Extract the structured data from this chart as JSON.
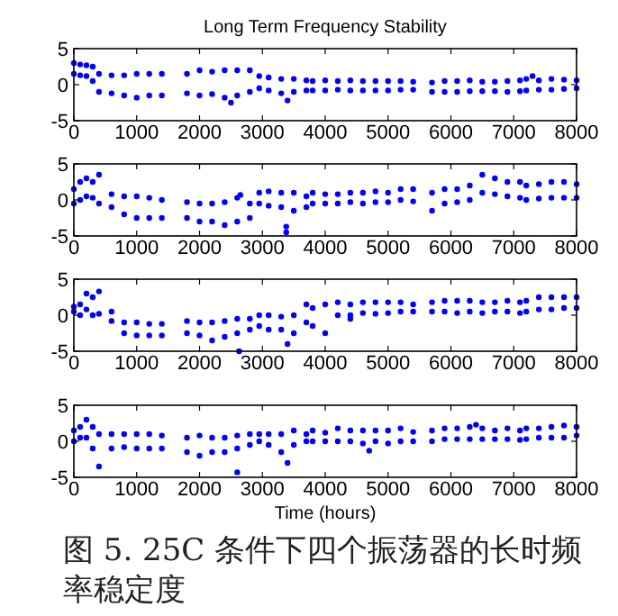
{
  "chart_data": [
    {
      "type": "scatter",
      "title": "Long Term Frequency Stability",
      "marker": "circle",
      "grid": false,
      "x": [
        0,
        100,
        200,
        300,
        400,
        600,
        800,
        1000,
        1200,
        1400,
        1800,
        2000,
        2200,
        2400,
        2600,
        2800,
        2950,
        3100,
        3300,
        3500,
        3700,
        3800,
        4000,
        4200,
        4400,
        4600,
        4800,
        5000,
        5200,
        5400,
        5700,
        5900,
        6100,
        6300,
        6500,
        6700,
        6900,
        7100,
        7200,
        7400,
        7600,
        7800,
        8000
      ],
      "series": [
        {
          "color": "#0000ff",
          "values": [
            3,
            2.8,
            2.7,
            2.5,
            1.5,
            1.3,
            1.3,
            1.5,
            1.5,
            1.5,
            1.5,
            2,
            1.8,
            2,
            2,
            2,
            1.2,
            1,
            0.8,
            0.8,
            0.6,
            0.5,
            0.6,
            0.5,
            0.6,
            0.5,
            0.5,
            0.5,
            0.5,
            0.4,
            0.3,
            0.5,
            0.5,
            0.6,
            0.4,
            0.4,
            0.5,
            0.6,
            0.8,
            0.6,
            0.8,
            0.7,
            0.6
          ]
        },
        {
          "color": "#0000ff",
          "values": [
            1.5,
            1.3,
            1.2,
            0.5,
            -1,
            -1.2,
            -1.5,
            -1.8,
            -1.5,
            -1.5,
            -1.2,
            -1.5,
            -1.3,
            -1.8,
            -1.5,
            -1,
            -0.5,
            -0.8,
            -1.2,
            -1,
            -0.8,
            -0.8,
            -0.8,
            -0.7,
            -0.8,
            -0.8,
            -0.8,
            -0.8,
            -0.7,
            -0.7,
            -1,
            -1,
            -1,
            -0.9,
            -0.9,
            -0.9,
            -1,
            -0.9,
            -0.8,
            -0.7,
            -0.7,
            -0.6,
            -0.5
          ]
        },
        {
          "color": "#0000ff",
          "x": [
            2500,
            3400,
            7300
          ],
          "values": [
            -2.5,
            -2.2,
            1.2
          ]
        }
      ],
      "xlim": [
        0,
        8000
      ],
      "xticks": [
        0,
        1000,
        2000,
        3000,
        4000,
        5000,
        6000,
        7000,
        8000
      ],
      "ylim": [
        -5,
        5
      ],
      "yticks": [
        -5,
        0,
        5
      ]
    },
    {
      "type": "scatter",
      "marker": "circle",
      "grid": false,
      "x": [
        0,
        100,
        200,
        300,
        400,
        600,
        800,
        1000,
        1200,
        1400,
        1800,
        2000,
        2200,
        2400,
        2600,
        2800,
        2950,
        3100,
        3300,
        3500,
        3700,
        3800,
        4000,
        4200,
        4400,
        4600,
        4800,
        5000,
        5200,
        5400,
        5700,
        5900,
        6100,
        6300,
        6500,
        6700,
        6900,
        7100,
        7200,
        7400,
        7600,
        7800,
        8000
      ],
      "series": [
        {
          "color": "#0000ff",
          "values": [
            1.5,
            2.5,
            3,
            2.5,
            3.5,
            0.8,
            0.5,
            0.5,
            0.3,
            0,
            -0.3,
            -0.5,
            -0.5,
            -0.3,
            0.3,
            -0.5,
            1,
            1.2,
            1,
            1,
            0.5,
            1,
            0.8,
            0.8,
            1,
            1,
            1.2,
            1,
            1.5,
            1.5,
            1,
            1.5,
            1.5,
            2,
            3.5,
            3,
            2.5,
            2.5,
            2,
            2.2,
            2.5,
            2.5,
            2.2
          ]
        },
        {
          "color": "#0000ff",
          "values": [
            -0.5,
            0,
            0.5,
            0.3,
            -0.5,
            -1,
            -2,
            -2.5,
            -2.5,
            -2.5,
            -2.5,
            -3,
            -3,
            -3.5,
            -3,
            -2.5,
            -0.5,
            -0.8,
            -1,
            -1.5,
            -1,
            -0.5,
            -0.5,
            -0.5,
            -0.3,
            -0.5,
            -0.3,
            -0.3,
            0,
            -0.2,
            -1.5,
            -0.5,
            -0.3,
            0,
            1,
            0.8,
            0.5,
            0.3,
            0,
            0.2,
            0.3,
            0.3,
            0.3
          ]
        },
        {
          "color": "#0000ff",
          "x": [
            3380,
            3380,
            2650
          ],
          "values": [
            -4.5,
            -3.7,
            0.7
          ]
        }
      ],
      "xlim": [
        0,
        8000
      ],
      "xticks": [
        0,
        1000,
        2000,
        3000,
        4000,
        5000,
        6000,
        7000,
        8000
      ],
      "ylim": [
        -5,
        5
      ],
      "yticks": [
        -5,
        0,
        5
      ]
    },
    {
      "type": "scatter",
      "marker": "circle",
      "grid": false,
      "x": [
        0,
        100,
        200,
        300,
        400,
        600,
        800,
        1000,
        1200,
        1400,
        1800,
        2000,
        2200,
        2400,
        2600,
        2800,
        2950,
        3100,
        3300,
        3500,
        3700,
        3800,
        4000,
        4200,
        4400,
        4600,
        4800,
        5000,
        5200,
        5400,
        5700,
        5900,
        6100,
        6300,
        6500,
        6700,
        6900,
        7100,
        7200,
        7400,
        7600,
        7800,
        8000
      ],
      "series": [
        {
          "color": "#0000ff",
          "values": [
            1.2,
            1.5,
            3,
            2.5,
            3.3,
            0.5,
            -1,
            -1,
            -1.2,
            -1.2,
            -0.8,
            -1,
            -1,
            -0.8,
            -0.5,
            -0.5,
            0,
            0,
            -0.2,
            0,
            1.5,
            1,
            1.5,
            1.8,
            1.5,
            1.8,
            1.8,
            1.8,
            1.8,
            1.5,
            1.8,
            2,
            2,
            2,
            1.8,
            1.8,
            2,
            1.8,
            2,
            2.5,
            2.5,
            2.5,
            2.5
          ]
        },
        {
          "color": "#0000ff",
          "values": [
            0.5,
            0,
            0.8,
            0,
            0.2,
            -0.8,
            -2.5,
            -2.8,
            -2.8,
            -2.8,
            -2.5,
            -2.8,
            -3.5,
            -3,
            -2.5,
            -2,
            -1.5,
            -2,
            -2,
            -2.5,
            -1,
            -1.5,
            -2.5,
            0,
            0,
            0.3,
            0.2,
            0.3,
            0.5,
            0.5,
            0.5,
            0.5,
            0.3,
            0.5,
            0.3,
            0.5,
            0.5,
            0.3,
            0.5,
            0.8,
            0.8,
            1,
            1
          ]
        },
        {
          "color": "#0000ff",
          "x": [
            2630,
            3400,
            4400
          ],
          "values": [
            -5,
            -4,
            -0.5
          ]
        }
      ],
      "xlim": [
        0,
        8000
      ],
      "xticks": [
        0,
        1000,
        2000,
        3000,
        4000,
        5000,
        6000,
        7000,
        8000
      ],
      "ylim": [
        -5,
        5
      ],
      "yticks": [
        -5,
        0,
        5
      ]
    },
    {
      "type": "scatter",
      "xlabel": "Time (hours)",
      "annotations": [
        "图 5. 25C 条件下四个振荡器的长时频率稳定度"
      ],
      "marker": "circle",
      "grid": false,
      "x": [
        0,
        100,
        200,
        300,
        400,
        600,
        800,
        1000,
        1200,
        1400,
        1800,
        2000,
        2200,
        2400,
        2600,
        2800,
        2950,
        3100,
        3300,
        3500,
        3700,
        3800,
        4000,
        4200,
        4400,
        4600,
        4800,
        5000,
        5200,
        5400,
        5700,
        5900,
        6100,
        6300,
        6500,
        6700,
        6900,
        7100,
        7200,
        7400,
        7600,
        7800,
        8000
      ],
      "series": [
        {
          "color": "#0000ff",
          "values": [
            1.5,
            2,
            3,
            2,
            1,
            1,
            1,
            1,
            1,
            0.8,
            0.5,
            0.8,
            0.5,
            0.5,
            0.8,
            1,
            1,
            1,
            1,
            1.5,
            1,
            1.5,
            1.2,
            1.8,
            1.5,
            1.5,
            1.5,
            1.5,
            1.8,
            1.3,
            1.5,
            1.8,
            1.8,
            2,
            1.8,
            1.5,
            1.8,
            1.5,
            1.8,
            1.8,
            2,
            2.2,
            2
          ]
        },
        {
          "color": "#0000ff",
          "values": [
            0,
            0.5,
            0.5,
            -1,
            -3.5,
            -1,
            -0.8,
            -1,
            -1,
            -1,
            -1.5,
            -2,
            -1.5,
            -1.5,
            -1,
            -0.5,
            0,
            -0.5,
            -1.5,
            -0.5,
            0,
            0,
            0,
            0,
            0,
            -0.3,
            0,
            -0.3,
            0,
            0,
            0,
            0.3,
            0.3,
            0.3,
            0.3,
            0.3,
            0.3,
            0.2,
            0.3,
            0.5,
            0.5,
            0.5,
            0.8
          ]
        },
        {
          "color": "#0000ff",
          "x": [
            2600,
            3400,
            4700,
            6400
          ],
          "values": [
            -4.3,
            -3,
            -1.3,
            2.3
          ]
        }
      ],
      "xlim": [
        0,
        8000
      ],
      "xticks": [
        0,
        1000,
        2000,
        3000,
        4000,
        5000,
        6000,
        7000,
        8000
      ],
      "ylim": [
        -5,
        5
      ],
      "yticks": [
        -5,
        0,
        5
      ]
    }
  ]
}
